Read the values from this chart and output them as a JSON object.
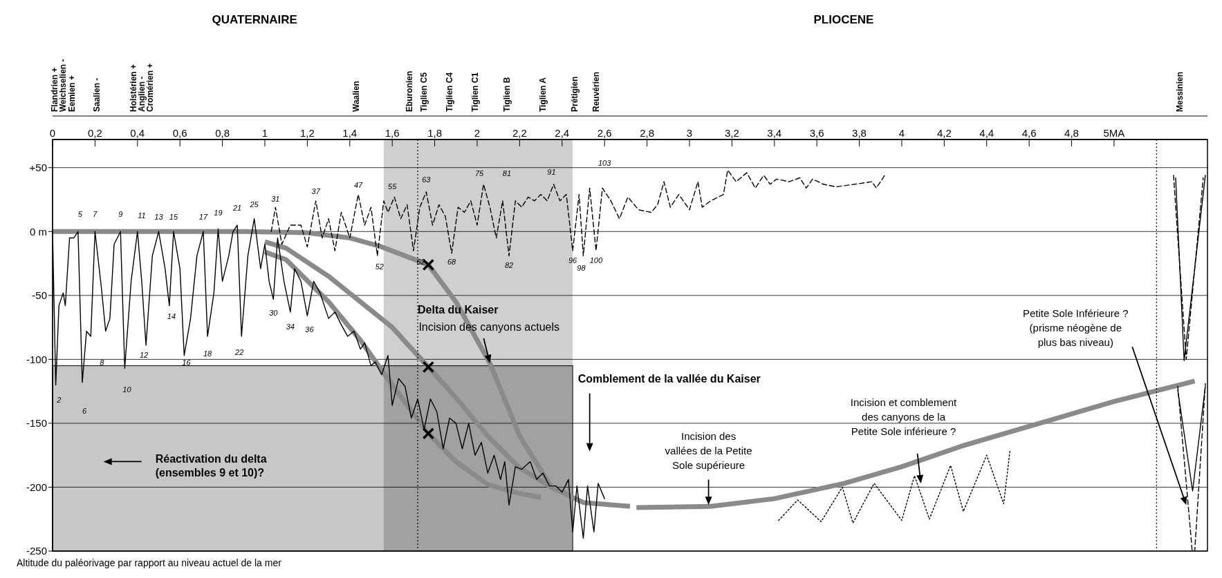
{
  "chart_data": {
    "type": "line",
    "marker": "none",
    "grid": "y",
    "xlim": [
      0,
      5.44
    ],
    "xticks": [
      0,
      {
        "value": 0.2,
        "label": "0,2"
      },
      {
        "value": 0.4,
        "label": "0,4"
      },
      {
        "value": 0.6,
        "label": "0,6"
      },
      {
        "value": 0.8,
        "label": "0,8"
      },
      1,
      {
        "value": 1.2,
        "label": "1,2"
      },
      {
        "value": 1.4,
        "label": "1,4"
      },
      {
        "value": 1.6,
        "label": "1,6"
      },
      {
        "value": 1.8,
        "label": "1,8"
      },
      2,
      {
        "value": 2.2,
        "label": "2,2"
      },
      {
        "value": 2.4,
        "label": "2,4"
      },
      {
        "value": 2.6,
        "label": "2,6"
      },
      {
        "value": 2.8,
        "label": "2,8"
      },
      3,
      {
        "value": 3.2,
        "label": "3,2"
      },
      {
        "value": 3.4,
        "label": "3,4"
      },
      {
        "value": 3.6,
        "label": "3,6"
      },
      {
        "value": 3.8,
        "label": "3,8"
      },
      4,
      {
        "value": 4.2,
        "label": "4,2"
      },
      {
        "value": 4.4,
        "label": "4,4"
      },
      {
        "value": 4.6,
        "label": "4,6"
      },
      {
        "value": 4.8,
        "label": "4,8"
      },
      {
        "value": 5,
        "label": "5MA"
      }
    ],
    "ylim": [
      -250,
      72
    ],
    "yticks": [
      -250,
      -200,
      -150,
      -100,
      -50,
      {
        "value": 0,
        "label": "0 m"
      },
      {
        "value": 50,
        "label": "+50"
      }
    ],
    "bands": [
      {
        "axis": "x",
        "from": 1.56,
        "to": 2.45,
        "color": "#cfcfcf"
      }
    ],
    "ref_lines": [
      {
        "axis": "x",
        "value": 1.72,
        "line_style": "dotted",
        "color": "#000000"
      },
      {
        "axis": "x",
        "value": 5.2,
        "line_style": "dotted",
        "color": "#000000"
      }
    ],
    "series": [
      {
        "color": "#8a8a8a",
        "x": [
          0,
          0.9,
          1.2,
          1.4,
          1.55,
          1.77,
          1.9,
          2.06,
          2.2,
          2.35,
          2.5,
          2.72
        ],
        "values": [
          0,
          0,
          -1,
          -5,
          -12,
          -26,
          -55,
          -103,
          -160,
          -200,
          -212,
          -215
        ]
      },
      {
        "color": "#8a8a8a",
        "x": [
          1.0,
          1.1,
          1.3,
          1.45,
          1.6,
          1.77,
          1.9,
          2.05,
          2.2,
          2.35,
          2.42
        ],
        "values": [
          -8,
          -13,
          -35,
          -55,
          -75,
          -106,
          -130,
          -160,
          -185,
          -200,
          -205
        ]
      },
      {
        "color": "#8a8a8a",
        "x": [
          1.0,
          1.1,
          1.3,
          1.45,
          1.6,
          1.77,
          1.9,
          2.05,
          2.2,
          2.3
        ],
        "values": [
          -16,
          -22,
          -55,
          -85,
          -120,
          -158,
          -180,
          -198,
          -205,
          -208
        ]
      },
      {
        "color": "#8a8a8a",
        "x": [
          2.75,
          3.1,
          3.4,
          3.73,
          4.0,
          4.28,
          4.65,
          5.0,
          5.38
        ],
        "values": [
          -216,
          -215,
          -209,
          -197,
          -184,
          -168,
          -150,
          -133,
          -117
        ]
      },
      {
        "color": "#000000",
        "line_style": "solid",
        "x": [
          0,
          0.015,
          0.03,
          0.05,
          0.06,
          0.08,
          0.1,
          0.12,
          0.14,
          0.16,
          0.18,
          0.2,
          0.23,
          0.25,
          0.27,
          0.29,
          0.32,
          0.34,
          0.37,
          0.4,
          0.42,
          0.44,
          0.47,
          0.5,
          0.53,
          0.55,
          0.57,
          0.6,
          0.62,
          0.65,
          0.68,
          0.71,
          0.73,
          0.76,
          0.78,
          0.8,
          0.83,
          0.85,
          0.87,
          0.89,
          0.92,
          0.95,
          0.98,
          1.0,
          1.02,
          1.04,
          1.06,
          1.09,
          1.12,
          1.14,
          1.17,
          1.2,
          1.23,
          1.26,
          1.3,
          1.33,
          1.36,
          1.39,
          1.42,
          1.45,
          1.47,
          1.5,
          1.52,
          1.55,
          1.58,
          1.6,
          1.63,
          1.66,
          1.69,
          1.72,
          1.75,
          1.78,
          1.81,
          1.84,
          1.87,
          1.9,
          1.93,
          1.96,
          1.99,
          2.02,
          2.05,
          2.08,
          2.11,
          2.13,
          2.15,
          2.18,
          2.21,
          2.25,
          2.28,
          2.31,
          2.34,
          2.37,
          2.4,
          2.43,
          2.45,
          2.47,
          2.5,
          2.52,
          2.55,
          2.57,
          2.6
        ],
        "values": [
          0,
          -120,
          -58,
          -48,
          -58,
          -5,
          -5,
          0,
          -118,
          -78,
          -82,
          0,
          -44,
          -78,
          -68,
          -10,
          0,
          -107,
          -39,
          0,
          -39,
          -89,
          -19,
          0,
          -29,
          -58,
          0,
          -29,
          -97,
          -68,
          -19,
          0,
          -82,
          -48,
          2,
          -39,
          -19,
          0,
          5,
          -82,
          -19,
          10,
          -29,
          -10,
          -39,
          -53,
          -5,
          -39,
          -63,
          -29,
          -39,
          -66,
          -39,
          -48,
          -68,
          -63,
          -73,
          -82,
          -78,
          -92,
          -87,
          -105,
          -102,
          -112,
          -97,
          -136,
          -115,
          -121,
          -146,
          -131,
          -155,
          -131,
          -141,
          -170,
          -146,
          -150,
          -170,
          -150,
          -175,
          -165,
          -189,
          -175,
          -194,
          -180,
          -214,
          -184,
          -186,
          -180,
          -194,
          -189,
          -199,
          -199,
          -204,
          -194,
          -235,
          -199,
          -240,
          -199,
          -235,
          -197,
          -209
        ]
      },
      {
        "color": "#000000",
        "line_style": "dashed",
        "x": [
          1.03,
          1.05,
          1.08,
          1.12,
          1.17,
          1.2,
          1.24,
          1.27,
          1.3,
          1.33,
          1.36,
          1.4,
          1.44,
          1.47,
          1.5,
          1.53,
          1.56,
          1.58,
          1.61,
          1.64,
          1.67,
          1.7,
          1.73,
          1.76,
          1.79,
          1.82,
          1.85,
          1.88,
          1.91,
          1.94,
          1.97,
          2.0,
          2.03,
          2.06,
          2.09,
          2.12,
          2.15,
          2.18,
          2.21,
          2.24,
          2.27,
          2.3,
          2.33,
          2.36,
          2.39,
          2.42,
          2.45,
          2.48,
          2.5,
          2.53,
          2.56,
          2.59,
          2.63,
          2.67,
          2.71,
          2.76,
          2.82,
          2.85,
          2.88,
          2.91,
          2.95,
          3.0,
          3.04,
          3.06,
          3.1,
          3.16,
          3.18,
          3.22,
          3.27,
          3.31,
          3.35,
          3.38,
          3.41,
          3.47,
          3.52,
          3.55,
          3.58,
          3.63,
          3.69,
          3.78,
          3.86,
          3.88,
          3.92
        ],
        "values": [
          0,
          19,
          -10,
          5,
          5,
          -12,
          24,
          -5,
          10,
          -15,
          15,
          -5,
          29,
          5,
          19,
          -19,
          24,
          15,
          27,
          10,
          21,
          -15,
          19,
          31,
          5,
          21,
          12,
          -17,
          19,
          15,
          24,
          5,
          37,
          19,
          -5,
          24,
          -19,
          24,
          19,
          27,
          24,
          29,
          24,
          37,
          24,
          29,
          -15,
          29,
          -19,
          34,
          -15,
          34,
          24,
          10,
          27,
          17,
          15,
          21,
          39,
          19,
          29,
          17,
          39,
          19,
          24,
          29,
          48,
          39,
          46,
          34,
          44,
          37,
          41,
          39,
          42,
          34,
          41,
          37,
          35,
          37,
          39,
          34,
          44
        ]
      },
      {
        "color": "#000000",
        "line_style": "dotted",
        "x": [
          3.42,
          3.51,
          3.62,
          3.72,
          3.77,
          3.87,
          4.0,
          4.06,
          4.13,
          4.23,
          4.29,
          4.4,
          4.48,
          4.51
        ],
        "values": [
          -226,
          -210,
          -227,
          -200,
          -228,
          -197,
          -226,
          -191,
          -225,
          -183,
          -219,
          -175,
          -213,
          -171
        ]
      },
      {
        "color": "#000000",
        "line_style": "solid",
        "x": [
          5.29,
          5.33,
          5.43
        ],
        "values": [
          42,
          -101,
          44
        ]
      },
      {
        "color": "#000000",
        "line_style": "dashed",
        "x": [
          5.28,
          5.34,
          5.42
        ],
        "values": [
          44,
          -100,
          42
        ]
      },
      {
        "color": "#000000",
        "line_style": "solid",
        "x": [
          5.3,
          5.37,
          5.43
        ],
        "values": [
          -124,
          -203,
          -121
        ]
      },
      {
        "color": "#000000",
        "line_style": "dashed",
        "x": [
          5.3,
          5.368,
          5.38,
          5.43
        ],
        "values": [
          -121,
          -250,
          -250,
          -119
        ]
      },
      {
        "type": "scatter",
        "marker": "cross",
        "color": "#000000",
        "x": [
          1.77,
          1.77,
          1.77
        ],
        "values": [
          -26,
          -106,
          -158
        ]
      }
    ],
    "annotations": [
      "QUATERNAIRE",
      "PLIOCENE",
      "Altitude du paléorivage par rapport au niveau actuel de la mer",
      "Delta du Kaiser",
      "Incision des canyons actuels",
      "Comblement de la vallée du Kaiser",
      "Réactivation du delta\n(ensembles 9 et 10)?",
      "Incision des\nvallées de la Petite\nSole supérieure",
      "Incision et comblement\ndes canyons de la\nPetite Sole inférieure ?",
      "Petite Sole Inférieure ?\n(prisme néogène de\nplus bas niveau)",
      "5",
      "7",
      "9",
      "11",
      "13",
      "15",
      "17",
      "19",
      "21",
      "25",
      "31",
      "37",
      "47",
      "55",
      "63",
      "75",
      "81",
      "91",
      "103",
      "52",
      "62",
      "68",
      "82",
      "96",
      "98",
      "100",
      "2",
      "6",
      "8",
      "10",
      "12",
      "14",
      "16",
      "18",
      "22",
      "30",
      "34",
      "36",
      "Flandrien +",
      "Weichselien -",
      "Eemien +",
      "Saalien -",
      "Holstérien +",
      "Anglien -",
      "Cromérien +",
      "Waalien",
      "Eburonien",
      "Tiglien C5",
      "Tiglien C4",
      "Tiglien C1",
      "Tiglien B",
      "Tiglien A",
      "Prétigien",
      "Reuvérien",
      "Messinien"
    ]
  }
}
